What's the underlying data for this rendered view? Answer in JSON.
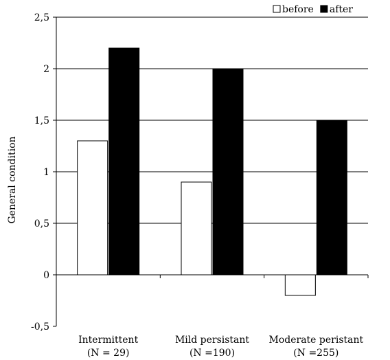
{
  "chart_data": {
    "type": "bar",
    "categories": [
      {
        "name": "Intermittent",
        "n": "(N = 29)"
      },
      {
        "name": "Mild persistant",
        "n": "(N =190)"
      },
      {
        "name": "Moderate peristant",
        "n": "(N =255)"
      }
    ],
    "series": [
      {
        "name": "before",
        "values": [
          1.3,
          0.9,
          -0.2
        ],
        "color": "#ffffff"
      },
      {
        "name": "after",
        "values": [
          2.2,
          2.0,
          1.5
        ],
        "color": "#000000"
      }
    ],
    "ylabel": "General condition",
    "ylim": [
      -0.5,
      2.5
    ],
    "yticks": [
      -0.5,
      0,
      0.5,
      1,
      1.5,
      2,
      2.5
    ],
    "ytick_labels": [
      "-0,5",
      "0",
      "0,5",
      "1",
      "1,5",
      "2",
      "2,5"
    ],
    "grid": true,
    "legend_position": "top-right"
  }
}
